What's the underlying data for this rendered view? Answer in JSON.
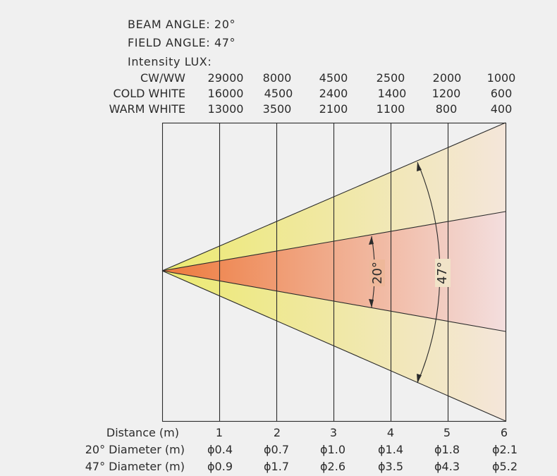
{
  "header": {
    "beam_angle": "BEAM ANGLE: 20°",
    "field_angle": "FIELD ANGLE: 47°",
    "intensity_title": "Intensity LUX:"
  },
  "intensity_table": {
    "rows": [
      {
        "label": "CW/WW",
        "values": [
          "29000",
          "8000",
          "4500",
          "2500",
          "2000",
          "1000"
        ]
      },
      {
        "label": "COLD WHITE",
        "values": [
          "16000",
          "4500",
          "2400",
          "1400",
          "1200",
          "600"
        ]
      },
      {
        "label": "WARM WHITE",
        "values": [
          "13000",
          "3500",
          "2100",
          "1100",
          "800",
          "400"
        ]
      }
    ]
  },
  "beam": {
    "beam_angle_label": "20°",
    "field_angle_label": "47°",
    "colors": {
      "beam_start": "#ee7a3c",
      "beam_end": "#f3dede",
      "field_start": "#ecea70",
      "field_end": "#f4e6da",
      "line": "#2b2b2b"
    }
  },
  "distance_table": {
    "rows": [
      {
        "label": "Distance (m)",
        "values": [
          "1",
          "2",
          "3",
          "4",
          "5",
          "6"
        ]
      },
      {
        "label": "20° Diameter (m)",
        "values": [
          "ϕ0.4",
          "ϕ0.7",
          "ϕ1.0",
          "ϕ1.4",
          "ϕ1.8",
          "ϕ2.1"
        ]
      },
      {
        "label": "47° Diameter (m)",
        "values": [
          "ϕ0.9",
          "ϕ1.7",
          "ϕ2.6",
          "ϕ3.5",
          "ϕ4.3",
          "ϕ5.2"
        ]
      }
    ]
  }
}
